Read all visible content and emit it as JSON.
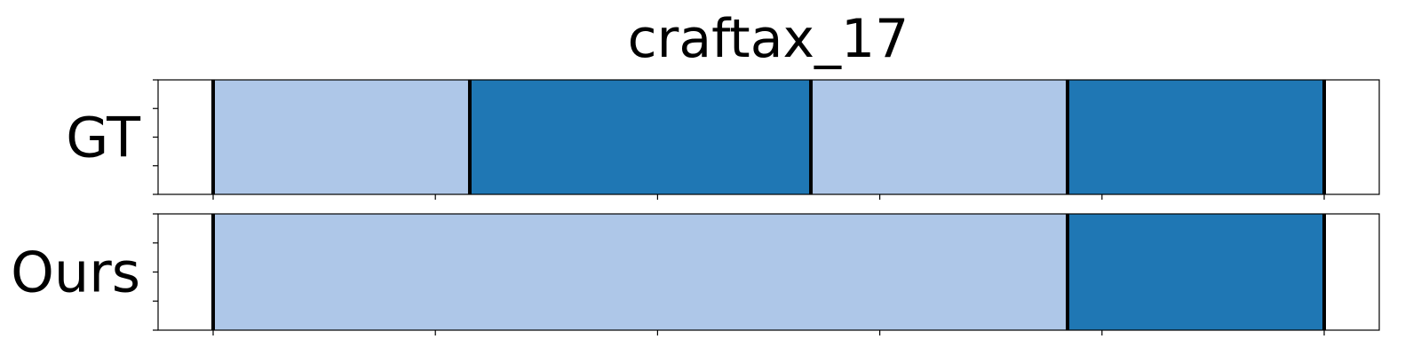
{
  "chart_data": {
    "type": "segmentation",
    "title": "craftax_17",
    "x_range": [
      0,
      100
    ],
    "x_ticks": [
      5,
      25,
      45,
      65,
      85,
      105
    ],
    "colors": {
      "light": "#aec7e8",
      "dark": "#1f77b4",
      "boundary": "#000000"
    },
    "rows": [
      {
        "label": "GT",
        "segments": [
          {
            "start": 5,
            "end": 28.1,
            "shade": "light"
          },
          {
            "start": 28.1,
            "end": 58.8,
            "shade": "dark"
          },
          {
            "start": 58.8,
            "end": 81.9,
            "shade": "light"
          },
          {
            "start": 81.9,
            "end": 105,
            "shade": "dark"
          }
        ]
      },
      {
        "label": "Ours",
        "segments": [
          {
            "start": 5,
            "end": 81.9,
            "shade": "light"
          },
          {
            "start": 81.9,
            "end": 105,
            "shade": "dark"
          }
        ]
      }
    ]
  }
}
